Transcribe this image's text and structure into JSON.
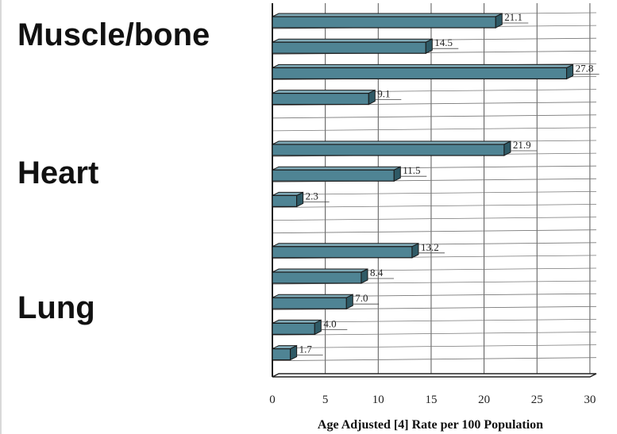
{
  "groups": [
    {
      "label": "Muscle/bone"
    },
    {
      "label": "Heart"
    },
    {
      "label": "Lung"
    }
  ],
  "chart_data": {
    "type": "bar",
    "orientation": "horizontal",
    "values": [
      21.1,
      14.5,
      27.8,
      9.1,
      null,
      21.9,
      11.5,
      2.3,
      null,
      13.2,
      8.4,
      7.0,
      4.0,
      1.7
    ],
    "value_labels": [
      "21.1",
      "14.5",
      "27.8",
      "9.1",
      "",
      "21.9",
      "11.5",
      "2.3",
      "",
      "13.2",
      "8.4",
      "7.0",
      "4.0",
      "1.7"
    ],
    "xlabel": "Age Adjusted [4] Rate per 100 Population",
    "xlim": [
      0,
      30
    ],
    "xticks": [
      0,
      5,
      10,
      15,
      20,
      25,
      30
    ],
    "grid": true,
    "bar_color": "#4f8494"
  }
}
